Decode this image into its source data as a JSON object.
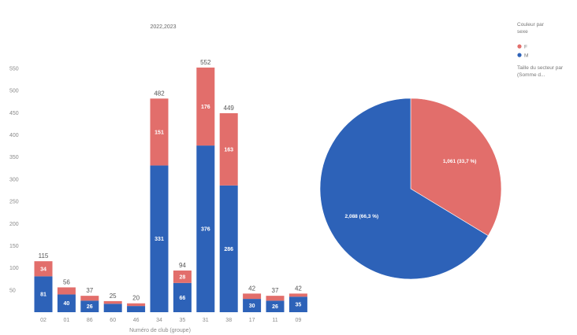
{
  "colors": {
    "M": "#2d62b8",
    "F": "#e26e6b"
  },
  "legend": {
    "title_line1": "Couleur par",
    "title_line2": "sexe",
    "items": [
      {
        "key": "F",
        "label": "F",
        "color": "#e26e6b"
      },
      {
        "key": "M",
        "label": "M",
        "color": "#2d62b8"
      }
    ],
    "size_line1": "Taille du secteur par",
    "size_line2": "(Somme d..."
  },
  "chart_data": [
    {
      "type": "bar",
      "stacked": true,
      "title": "2022,2023",
      "xlabel": "Numéro de club (groupe)",
      "ylabel": "",
      "ylim": [
        0,
        575
      ],
      "yticks": [
        50,
        100,
        150,
        200,
        250,
        300,
        350,
        400,
        450,
        500,
        550
      ],
      "categories": [
        "02",
        "01",
        "86",
        "60",
        "46",
        "34",
        "35",
        "31",
        "38",
        "17",
        "11",
        "09"
      ],
      "series": [
        {
          "name": "M",
          "values": [
            81,
            40,
            26,
            19,
            14,
            331,
            66,
            376,
            286,
            30,
            26,
            35
          ]
        },
        {
          "name": "F",
          "values": [
            34,
            16,
            11,
            6,
            6,
            151,
            28,
            176,
            163,
            12,
            11,
            7
          ]
        }
      ],
      "totals": [
        115,
        56,
        37,
        25,
        20,
        482,
        94,
        552,
        449,
        42,
        37,
        42
      ],
      "segment_labels": {
        "M": [
          "81",
          "40",
          "26",
          "",
          "",
          "331",
          "66",
          "376",
          "286",
          "30",
          "26",
          "35"
        ],
        "F": [
          "34",
          "",
          "",
          "",
          "",
          "151",
          "28",
          "176",
          "163",
          "",
          "",
          ""
        ]
      },
      "legend": "none",
      "grid": false
    },
    {
      "type": "pie",
      "slices": [
        {
          "name": "F",
          "value": 1.061,
          "label": "1,061 (33,7 %)"
        },
        {
          "name": "M",
          "value": 2.088,
          "label": "2,088 (66,3 %)"
        }
      ],
      "legend": "top-right"
    }
  ]
}
